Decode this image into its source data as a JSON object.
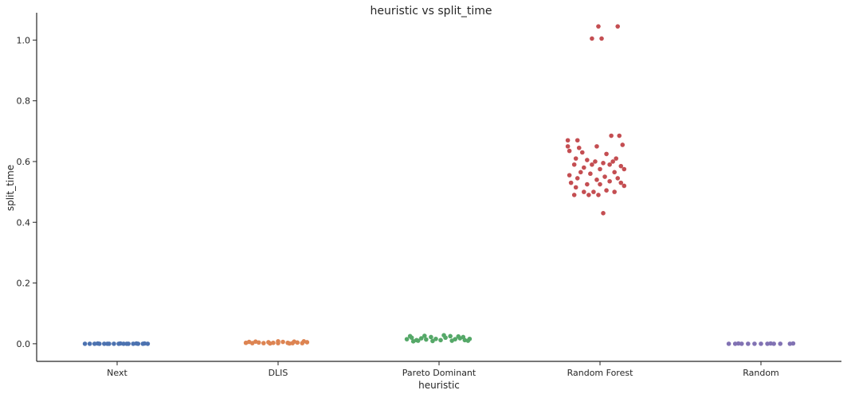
{
  "chart_data": {
    "type": "scatter",
    "title": "heuristic vs split_time",
    "xlabel": "heuristic",
    "ylabel": "split_time",
    "categories": [
      "Next",
      "DLIS",
      "Pareto Dominant",
      "Random Forest",
      "Random"
    ],
    "ylim": [
      -0.058,
      1.09
    ],
    "yticks": [
      0.0,
      0.2,
      0.4,
      0.6,
      0.8,
      1.0
    ],
    "ytick_labels": [
      "0.0",
      "0.2",
      "0.4",
      "0.6",
      "0.8",
      "1.0"
    ],
    "grid": false,
    "series": [
      {
        "category": "Next",
        "color": "#4c72b0",
        "points": [
          [
            -0.2,
            0.0
          ],
          [
            -0.17,
            0.0
          ],
          [
            -0.14,
            0.0
          ],
          [
            -0.11,
            0.0
          ],
          [
            -0.08,
            0.0
          ],
          [
            -0.05,
            0.0
          ],
          [
            -0.02,
            0.0
          ],
          [
            0.01,
            0.0
          ],
          [
            0.04,
            0.0
          ],
          [
            0.07,
            0.0
          ],
          [
            0.1,
            0.0
          ],
          [
            0.13,
            0.0
          ],
          [
            0.16,
            0.0
          ],
          [
            0.19,
            0.0
          ],
          [
            -0.12,
            0.001
          ],
          [
            0.02,
            0.001
          ],
          [
            0.12,
            0.001
          ],
          [
            -0.06,
            0.0
          ],
          [
            0.06,
            0.0
          ],
          [
            0.17,
            0.001
          ]
        ]
      },
      {
        "category": "DLIS",
        "color": "#dd8452",
        "points": [
          [
            -0.2,
            0.003
          ],
          [
            -0.16,
            0.002
          ],
          [
            -0.12,
            0.004
          ],
          [
            -0.09,
            0.002
          ],
          [
            -0.06,
            0.005
          ],
          [
            -0.03,
            0.003
          ],
          [
            0.0,
            0.002
          ],
          [
            0.03,
            0.006
          ],
          [
            0.06,
            0.003
          ],
          [
            0.09,
            0.002
          ],
          [
            0.12,
            0.004
          ],
          [
            0.15,
            0.002
          ],
          [
            0.18,
            0.005
          ],
          [
            -0.14,
            0.007
          ],
          [
            0.0,
            0.008
          ],
          [
            0.1,
            0.007
          ],
          [
            0.16,
            0.008
          ],
          [
            -0.05,
            0.001
          ],
          [
            0.07,
            0.001
          ],
          [
            -0.18,
            0.006
          ]
        ]
      },
      {
        "category": "Pareto Dominant",
        "color": "#55a868",
        "points": [
          [
            -0.2,
            0.015
          ],
          [
            -0.17,
            0.02
          ],
          [
            -0.14,
            0.012
          ],
          [
            -0.11,
            0.018
          ],
          [
            -0.08,
            0.014
          ],
          [
            -0.05,
            0.022
          ],
          [
            -0.02,
            0.016
          ],
          [
            0.01,
            0.012
          ],
          [
            0.04,
            0.02
          ],
          [
            0.07,
            0.025
          ],
          [
            0.1,
            0.015
          ],
          [
            0.13,
            0.018
          ],
          [
            0.16,
            0.012
          ],
          [
            0.19,
            0.016
          ],
          [
            -0.18,
            0.025
          ],
          [
            -0.09,
            0.026
          ],
          [
            0.03,
            0.028
          ],
          [
            0.12,
            0.024
          ],
          [
            -0.13,
            0.01
          ],
          [
            0.08,
            0.01
          ],
          [
            0.18,
            0.01
          ],
          [
            -0.04,
            0.009
          ],
          [
            0.15,
            0.022
          ],
          [
            -0.16,
            0.008
          ]
        ]
      },
      {
        "category": "Random Forest",
        "color": "#c44e52",
        "points": [
          [
            -0.01,
            1.045
          ],
          [
            0.11,
            1.045
          ],
          [
            -0.05,
            1.005
          ],
          [
            0.01,
            1.005
          ],
          [
            -0.2,
            0.67
          ],
          [
            -0.14,
            0.67
          ],
          [
            0.07,
            0.685
          ],
          [
            0.12,
            0.685
          ],
          [
            -0.2,
            0.65
          ],
          [
            -0.13,
            0.645
          ],
          [
            -0.02,
            0.65
          ],
          [
            0.14,
            0.655
          ],
          [
            -0.19,
            0.635
          ],
          [
            -0.11,
            0.63
          ],
          [
            0.04,
            0.625
          ],
          [
            -0.15,
            0.61
          ],
          [
            0.1,
            0.61
          ],
          [
            -0.08,
            0.605
          ],
          [
            0.08,
            0.6
          ],
          [
            -0.03,
            0.6
          ],
          [
            0.02,
            0.595
          ],
          [
            -0.16,
            0.59
          ],
          [
            -0.05,
            0.59
          ],
          [
            0.06,
            0.59
          ],
          [
            0.13,
            0.585
          ],
          [
            -0.1,
            0.58
          ],
          [
            0.0,
            0.575
          ],
          [
            0.15,
            0.575
          ],
          [
            -0.12,
            0.565
          ],
          [
            0.09,
            0.565
          ],
          [
            -0.06,
            0.56
          ],
          [
            -0.19,
            0.555
          ],
          [
            0.03,
            0.55
          ],
          [
            -0.14,
            0.545
          ],
          [
            0.11,
            0.545
          ],
          [
            -0.02,
            0.54
          ],
          [
            0.06,
            0.535
          ],
          [
            -0.18,
            0.53
          ],
          [
            0.13,
            0.53
          ],
          [
            -0.08,
            0.525
          ],
          [
            0.0,
            0.525
          ],
          [
            0.15,
            0.52
          ],
          [
            -0.15,
            0.515
          ],
          [
            0.04,
            0.505
          ],
          [
            -0.1,
            0.5
          ],
          [
            -0.04,
            0.5
          ],
          [
            0.09,
            0.5
          ],
          [
            -0.16,
            0.49
          ],
          [
            -0.07,
            0.49
          ],
          [
            -0.01,
            0.49
          ],
          [
            0.02,
            0.43
          ]
        ]
      },
      {
        "category": "Random",
        "color": "#8172b3",
        "points": [
          [
            -0.2,
            0.0
          ],
          [
            -0.16,
            0.0
          ],
          [
            -0.12,
            0.0
          ],
          [
            -0.08,
            0.0
          ],
          [
            -0.04,
            0.0
          ],
          [
            0.0,
            0.0
          ],
          [
            0.04,
            0.0
          ],
          [
            0.08,
            0.0
          ],
          [
            0.12,
            0.0
          ],
          [
            0.18,
            0.0
          ],
          [
            -0.14,
            0.001
          ],
          [
            0.06,
            0.001
          ],
          [
            0.2,
            0.001
          ]
        ]
      }
    ]
  }
}
